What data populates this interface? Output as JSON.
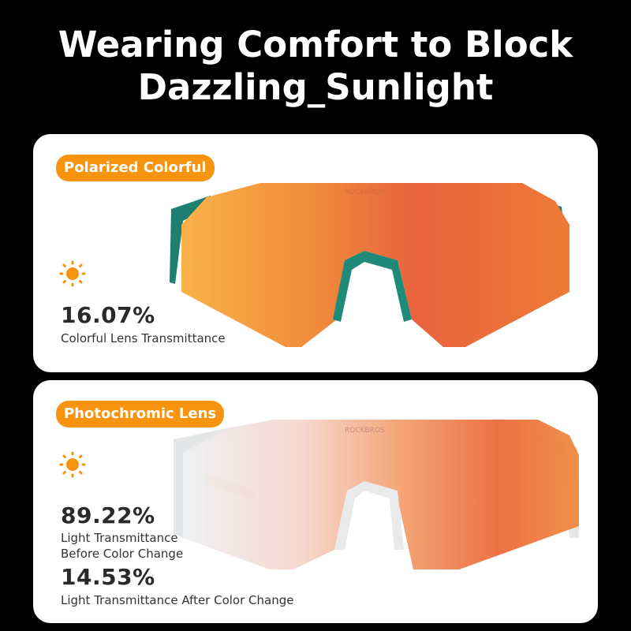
{
  "title": {
    "line1": "Wearing Comfort to Block",
    "line2": "Dazzling_Sunlight"
  },
  "cards": [
    {
      "badge": "Polarized Colorful",
      "icon": "sun-icon",
      "stats": [
        {
          "value": "16.07%",
          "label": "Colorful Lens Transmittance"
        }
      ],
      "frame_color": "#1f8a78",
      "logo": "ROCKBROS"
    },
    {
      "badge": "Photochromic Lens",
      "icon": "sun-icon",
      "stats": [
        {
          "value": "89.22%",
          "label_line1": "Light Transmittance",
          "label_line2": "Before Color Change"
        },
        {
          "value": "14.53%",
          "label": "Light Transmittance After Color Change"
        }
      ],
      "frame_color": "#dcdcdc",
      "logo": "ROCKBROS"
    }
  ],
  "colors": {
    "accent": "#f6930f",
    "background": "#000000",
    "card": "#ffffff"
  }
}
